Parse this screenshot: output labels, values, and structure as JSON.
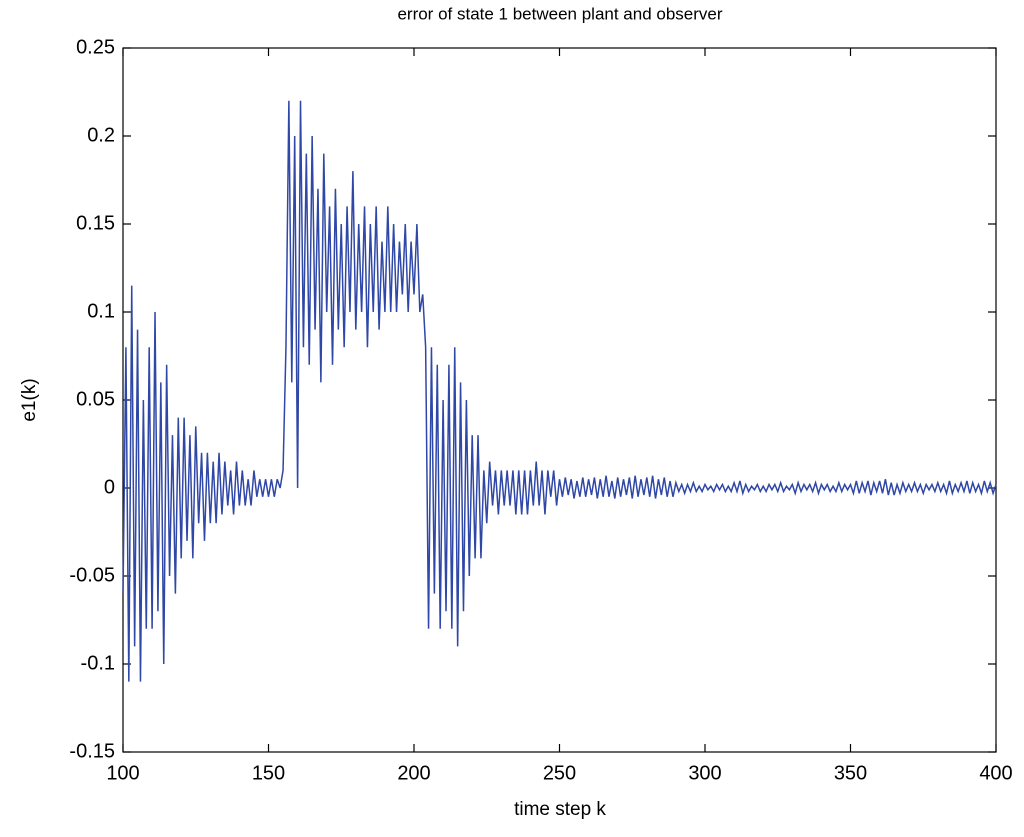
{
  "chart_data": {
    "type": "line",
    "title": "error of state 1 between plant and observer",
    "x_label": "time step k",
    "y_label": "e1(k)",
    "xlim": [
      100,
      400
    ],
    "ylim": [
      -0.15,
      0.25
    ],
    "xticks": [
      100,
      150,
      200,
      250,
      300,
      350,
      400
    ],
    "yticks": [
      -0.15,
      -0.1,
      -0.05,
      0,
      0.05,
      0.1,
      0.15,
      0.2,
      0.25
    ],
    "grid": false,
    "series": [
      {
        "color": "#2f47a6",
        "x": [
          100,
          101,
          102,
          103,
          104,
          105,
          106,
          107,
          108,
          109,
          110,
          111,
          112,
          113,
          114,
          115,
          116,
          117,
          118,
          119,
          120,
          121,
          122,
          123,
          124,
          125,
          126,
          127,
          128,
          129,
          130,
          131,
          132,
          133,
          134,
          135,
          136,
          137,
          138,
          139,
          140,
          141,
          142,
          143,
          144,
          145,
          146,
          147,
          148,
          149,
          150,
          151,
          152,
          153,
          154,
          155,
          156,
          157,
          158,
          159,
          160,
          161,
          162,
          163,
          164,
          165,
          166,
          167,
          168,
          169,
          170,
          171,
          172,
          173,
          174,
          175,
          176,
          177,
          178,
          179,
          180,
          181,
          182,
          183,
          184,
          185,
          186,
          187,
          188,
          189,
          190,
          191,
          192,
          193,
          194,
          195,
          196,
          197,
          198,
          199,
          200,
          201,
          202,
          203,
          204,
          205,
          206,
          207,
          208,
          209,
          210,
          211,
          212,
          213,
          214,
          215,
          216,
          217,
          218,
          219,
          220,
          221,
          222,
          223,
          224,
          225,
          226,
          227,
          228,
          229,
          230,
          231,
          232,
          233,
          234,
          235,
          236,
          237,
          238,
          239,
          240,
          241,
          242,
          243,
          244,
          245,
          246,
          247,
          248,
          249,
          250,
          251,
          252,
          253,
          254,
          255,
          256,
          257,
          258,
          259,
          260,
          261,
          262,
          263,
          264,
          265,
          266,
          267,
          268,
          269,
          270,
          271,
          272,
          273,
          274,
          275,
          276,
          277,
          278,
          279,
          280,
          281,
          282,
          283,
          284,
          285,
          286,
          287,
          288,
          289,
          290,
          291,
          292,
          293,
          294,
          295,
          296,
          297,
          298,
          299,
          300,
          301,
          302,
          303,
          304,
          305,
          306,
          307,
          308,
          309,
          310,
          311,
          312,
          313,
          314,
          315,
          316,
          317,
          318,
          319,
          320,
          321,
          322,
          323,
          324,
          325,
          326,
          327,
          328,
          329,
          330,
          331,
          332,
          333,
          334,
          335,
          336,
          337,
          338,
          339,
          340,
          341,
          342,
          343,
          344,
          345,
          346,
          347,
          348,
          349,
          350,
          351,
          352,
          353,
          354,
          355,
          356,
          357,
          358,
          359,
          360,
          361,
          362,
          363,
          364,
          365,
          366,
          367,
          368,
          369,
          370,
          371,
          372,
          373,
          374,
          375,
          376,
          377,
          378,
          379,
          380,
          381,
          382,
          383,
          384,
          385,
          386,
          387,
          388,
          389,
          390,
          391,
          392,
          393,
          394,
          395,
          396,
          397,
          398,
          399,
          400
        ],
        "values": [
          -0.06,
          0.08,
          -0.11,
          0.115,
          -0.09,
          0.09,
          -0.11,
          0.05,
          -0.08,
          0.08,
          -0.08,
          0.1,
          -0.07,
          0.06,
          -0.1,
          0.07,
          -0.05,
          0.03,
          -0.06,
          0.04,
          -0.04,
          0.04,
          -0.03,
          0.03,
          -0.04,
          0.035,
          -0.02,
          0.02,
          -0.03,
          0.02,
          -0.02,
          0.015,
          -0.02,
          0.02,
          -0.015,
          0.015,
          -0.01,
          0.01,
          -0.015,
          0.015,
          -0.01,
          0.01,
          -0.01,
          0.005,
          -0.01,
          0.01,
          -0.005,
          0.005,
          -0.005,
          0.005,
          -0.005,
          0.005,
          -0.005,
          0.005,
          0,
          0.01,
          0.08,
          0.22,
          0.06,
          0.2,
          0,
          0.22,
          0.08,
          0.19,
          0.07,
          0.2,
          0.09,
          0.17,
          0.06,
          0.19,
          0.1,
          0.16,
          0.07,
          0.17,
          0.09,
          0.15,
          0.08,
          0.16,
          0.1,
          0.18,
          0.09,
          0.15,
          0.1,
          0.16,
          0.08,
          0.15,
          0.1,
          0.16,
          0.09,
          0.14,
          0.1,
          0.16,
          0.1,
          0.15,
          0.1,
          0.14,
          0.11,
          0.15,
          0.1,
          0.14,
          0.11,
          0.15,
          0.1,
          0.11,
          0.08,
          -0.08,
          0.08,
          -0.06,
          0.07,
          -0.08,
          0.05,
          -0.07,
          0.07,
          -0.08,
          0.08,
          -0.09,
          0.06,
          -0.07,
          0.05,
          -0.05,
          0.03,
          -0.04,
          0.03,
          -0.04,
          0.01,
          -0.02,
          0.015,
          -0.01,
          0.01,
          -0.015,
          0.01,
          -0.01,
          0.01,
          -0.01,
          0.01,
          -0.015,
          0.01,
          -0.015,
          0.01,
          -0.015,
          0.01,
          -0.01,
          0.015,
          -0.01,
          0.01,
          -0.015,
          0.01,
          -0.005,
          0.01,
          -0.01,
          0.005,
          -0.005,
          0.006,
          -0.004,
          0.005,
          -0.006,
          0.004,
          -0.005,
          0.006,
          -0.005,
          0.005,
          -0.004,
          0.006,
          -0.006,
          0.005,
          -0.005,
          0.007,
          -0.005,
          0.004,
          -0.006,
          0.006,
          -0.005,
          0.005,
          -0.004,
          0.006,
          -0.006,
          0.007,
          -0.005,
          0.005,
          -0.004,
          0.006,
          -0.005,
          0.007,
          -0.006,
          0.005,
          -0.004,
          0.006,
          -0.005,
          0.004,
          -0.005,
          0.003,
          -0.002,
          0.002,
          -0.003,
          0.002,
          -0.002,
          0.003,
          -0.002,
          0.001,
          -0.002,
          0.002,
          -0.001,
          0.001,
          -0.002,
          0.002,
          -0.001,
          0.002,
          -0.002,
          0.001,
          -0.002,
          0.003,
          -0.002,
          0.004,
          -0.003,
          0.002,
          -0.002,
          0.001,
          -0.001,
          0.002,
          -0.002,
          0.001,
          -0.002,
          0.002,
          -0.001,
          0.002,
          -0.002,
          0.003,
          -0.002,
          0.001,
          -0.001,
          0.002,
          -0.003,
          0.003,
          -0.002,
          0.002,
          -0.001,
          0.002,
          -0.002,
          0.003,
          -0.003,
          0.002,
          -0.001,
          0.002,
          -0.002,
          0.001,
          -0.002,
          0.003,
          -0.002,
          0.002,
          -0.001,
          0.002,
          -0.003,
          0.004,
          -0.003,
          0.003,
          -0.002,
          0.004,
          -0.004,
          0.003,
          -0.002,
          0.004,
          -0.003,
          0.005,
          -0.004,
          0.003,
          -0.004,
          0.002,
          -0.003,
          0.003,
          -0.002,
          0.002,
          -0.002,
          0.003,
          -0.002,
          0.002,
          -0.003,
          0.002,
          -0.001,
          0.002,
          -0.002,
          0.003,
          -0.002,
          0.002,
          -0.003,
          0.004,
          -0.003,
          0.002,
          -0.002,
          0.003,
          -0.002,
          0.004,
          -0.003,
          0.003,
          -0.002,
          0.002,
          -0.003,
          0.004,
          -0.002,
          0.003,
          -0.003,
          0.002
        ]
      }
    ]
  }
}
